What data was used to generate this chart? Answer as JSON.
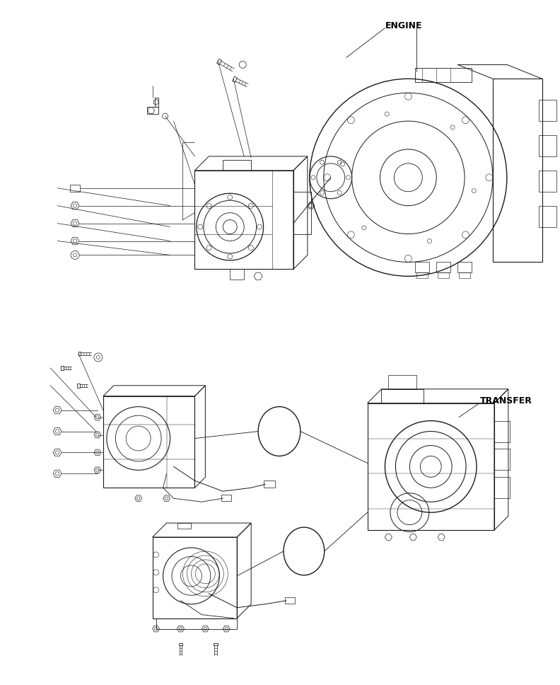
{
  "background_color": "#ffffff",
  "line_color": "#1a1a1a",
  "text_color": "#000000",
  "labels": {
    "engine": "ENGINE",
    "transfer": "TRANSFER"
  },
  "fig_width": 7.92,
  "fig_height": 9.68,
  "dpi": 100
}
